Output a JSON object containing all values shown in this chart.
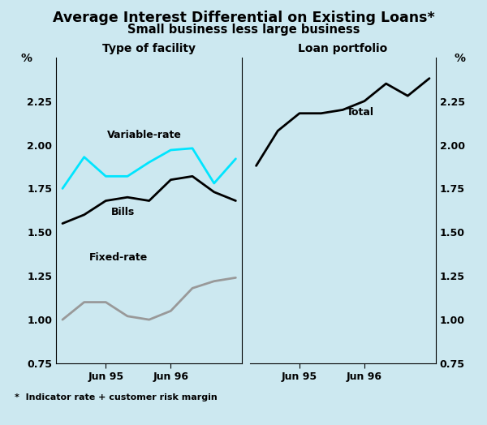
{
  "title": "Average Interest Differential on Existing Loans*",
  "subtitle": "Small business less large business",
  "footnote": "*  Indicator rate + customer risk margin",
  "left_panel_title": "Type of facility",
  "right_panel_title": "Loan portfolio",
  "ylabel": "%",
  "ylim": [
    0.75,
    2.5
  ],
  "yticks": [
    0.75,
    1.0,
    1.25,
    1.5,
    1.75,
    2.0,
    2.25
  ],
  "ytick_labels": [
    "0.75",
    "1.00",
    "1.25",
    "1.50",
    "1.75",
    "2.00",
    "2.25"
  ],
  "background_color": "#cce8f0",
  "x_quarters_left": [
    0,
    1,
    2,
    3,
    4,
    5,
    6,
    7,
    8
  ],
  "x_quarters_right": [
    0,
    1,
    2,
    3,
    4,
    5,
    6,
    7,
    8
  ],
  "left_xtick_positions": [
    2,
    5
  ],
  "left_xtick_labels": [
    "Jun 95",
    "Jun 96"
  ],
  "right_xtick_positions": [
    2,
    5
  ],
  "right_xtick_labels": [
    "Jun 95",
    "Jun 96"
  ],
  "variable_rate": {
    "label": "Variable-rate",
    "color": "#00e5ff",
    "linewidth": 2.0,
    "data": [
      1.75,
      1.93,
      1.82,
      1.82,
      1.9,
      1.97,
      1.98,
      1.78,
      1.92
    ]
  },
  "bills": {
    "label": "Bills",
    "color": "#000000",
    "linewidth": 2.0,
    "data": [
      1.55,
      1.6,
      1.68,
      1.7,
      1.68,
      1.8,
      1.82,
      1.73,
      1.68
    ]
  },
  "fixed_rate": {
    "label": "Fixed-rate",
    "color": "#999999",
    "linewidth": 2.0,
    "data": [
      1.0,
      1.1,
      1.1,
      1.02,
      1.0,
      1.05,
      1.18,
      1.22,
      1.24
    ]
  },
  "total": {
    "label": "Total",
    "color": "#000000",
    "linewidth": 2.0,
    "data": [
      1.88,
      2.08,
      2.18,
      2.18,
      2.2,
      2.25,
      2.35,
      2.28,
      2.38
    ]
  }
}
